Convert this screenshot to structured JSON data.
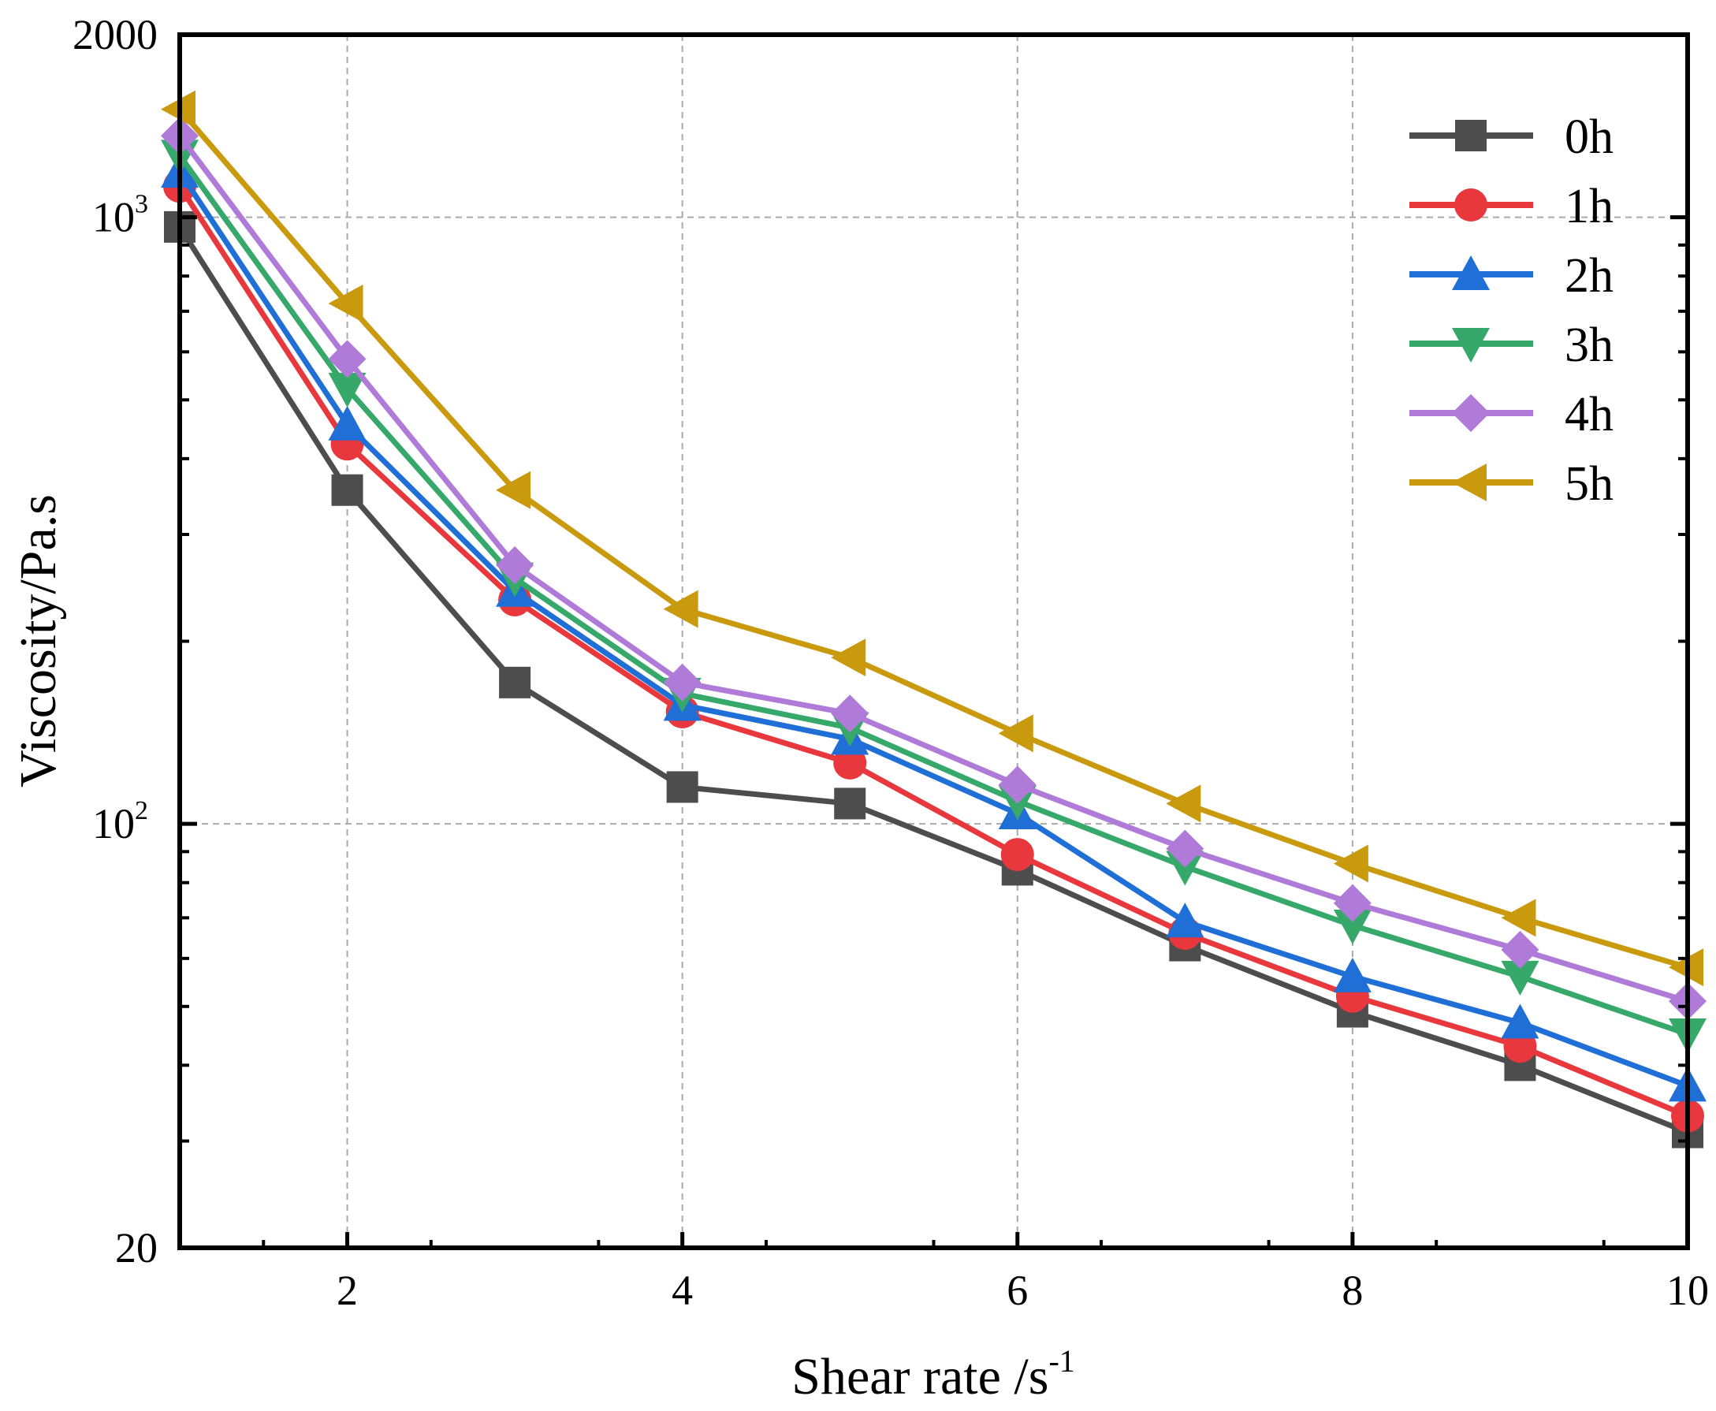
{
  "chart_data": {
    "type": "line",
    "title": "",
    "xlabel": "Shear rate /s",
    "xlabel_sup": "-1",
    "ylabel": "Viscosity/Pa.s",
    "xlim": [
      1,
      10
    ],
    "ylim": [
      20,
      2000
    ],
    "yscale": "log",
    "grid": true,
    "legend_position": "top-right",
    "x_ticks": [
      2,
      4,
      6,
      8,
      10
    ],
    "x_tick_labels": [
      "2",
      "4",
      "6",
      "8",
      "10"
    ],
    "y_tick_labels": [
      {
        "value": 2000,
        "base": "2000",
        "sup": ""
      },
      {
        "value": 1000,
        "base": "10",
        "sup": "3"
      },
      {
        "value": 100,
        "base": "10",
        "sup": "2"
      },
      {
        "value": 20,
        "base": "20",
        "sup": ""
      }
    ],
    "x": [
      1,
      2,
      3,
      4,
      5,
      6,
      7,
      8,
      9,
      10
    ],
    "series": [
      {
        "name": "0h",
        "color": "#4d4d4d",
        "marker": "square",
        "values": [
          964,
          355,
          171,
          115,
          108,
          84,
          63,
          49,
          40,
          31
        ]
      },
      {
        "name": "1h",
        "color": "#e8383d",
        "marker": "circle",
        "values": [
          1125,
          423,
          234,
          153,
          126,
          89,
          66,
          52,
          43,
          33
        ]
      },
      {
        "name": "2h",
        "color": "#1f6fd6",
        "marker": "triangle-up",
        "values": [
          1188,
          455,
          242,
          157,
          138,
          104,
          69,
          56,
          47,
          37
        ]
      },
      {
        "name": "3h",
        "color": "#36a86a",
        "marker": "triangle-down",
        "values": [
          1264,
          522,
          254,
          164,
          144,
          109,
          85,
          68,
          56,
          45
        ]
      },
      {
        "name": "4h",
        "color": "#b07ad9",
        "marker": "diamond",
        "values": [
          1362,
          584,
          267,
          171,
          152,
          116,
          91,
          74,
          62,
          51
        ]
      },
      {
        "name": "5h",
        "color": "#c9990e",
        "marker": "triangle-left",
        "values": [
          1507,
          721,
          355,
          226,
          188,
          141,
          108,
          86,
          70,
          58
        ]
      }
    ]
  }
}
